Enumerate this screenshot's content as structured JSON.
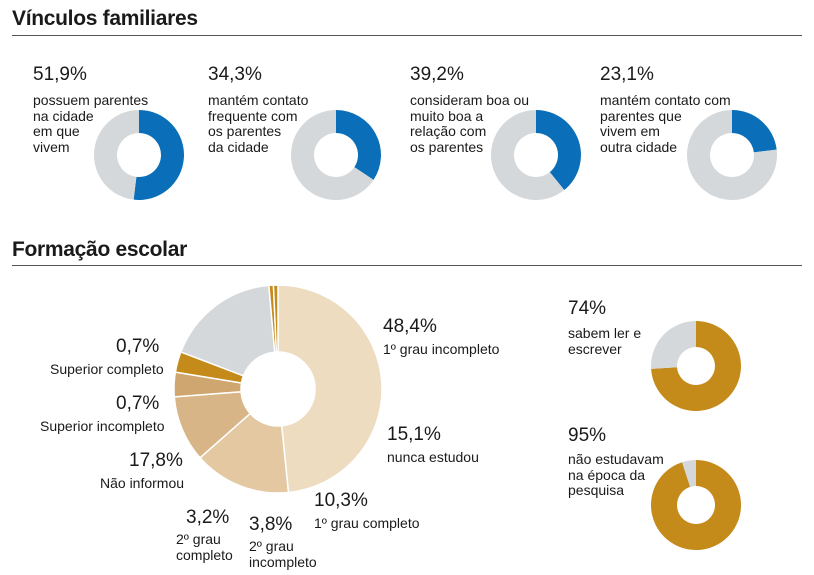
{
  "sections": {
    "family_title": "Vínculos familiares",
    "school_title": "Formação escolar"
  },
  "colors": {
    "blue": "#0a6fb8",
    "gray": "#d4d8da",
    "gold": "#c48a1a",
    "tan1": "#eddcbf",
    "tan2": "#e3c8a2",
    "tan3": "#d7b586",
    "tan4": "#cfa670"
  },
  "chart_data": [
    {
      "type": "pie",
      "variant": "donut",
      "values": [
        51.9,
        48.1
      ],
      "pct_label": "51,9%",
      "description": "possuem parentes\nna cidade\nem que\nvivem"
    },
    {
      "type": "pie",
      "variant": "donut",
      "values": [
        34.3,
        65.7
      ],
      "pct_label": "34,3%",
      "description": "mantém contato\nfrequente com\nos parentes\nda cidade"
    },
    {
      "type": "pie",
      "variant": "donut",
      "values": [
        39.2,
        60.8
      ],
      "pct_label": "39,2%",
      "description": "consideram boa ou\nmuito boa a\nrelação com\nos parentes"
    },
    {
      "type": "pie",
      "variant": "donut",
      "values": [
        23.1,
        76.9
      ],
      "pct_label": "23,1%",
      "description": "mantém contato com\nparentes que\nvivem em\noutra cidade"
    },
    {
      "type": "pie",
      "variant": "donut",
      "slices": [
        {
          "pct": 48.4,
          "pct_label": "48,4%",
          "label": "1º grau incompleto"
        },
        {
          "pct": 15.1,
          "pct_label": "15,1%",
          "label": "nunca estudou"
        },
        {
          "pct": 10.3,
          "pct_label": "10,3%",
          "label": "1º grau completo"
        },
        {
          "pct": 3.8,
          "pct_label": "3,8%",
          "label": "2º grau\nincompleto"
        },
        {
          "pct": 3.2,
          "pct_label": "3,2%",
          "label": "2º grau\ncompleto"
        },
        {
          "pct": 17.8,
          "pct_label": "17,8%",
          "label": "Não informou"
        },
        {
          "pct": 0.7,
          "pct_label": "0,7%",
          "label": "Superior incompleto"
        },
        {
          "pct": 0.7,
          "pct_label": "0,7%",
          "label": "Superior completo"
        }
      ]
    },
    {
      "type": "pie",
      "variant": "donut",
      "values": [
        74,
        26
      ],
      "pct_label": "74%",
      "description": "sabem ler e\nescrever"
    },
    {
      "type": "pie",
      "variant": "donut",
      "values": [
        95,
        5
      ],
      "pct_label": "95%",
      "description": "não estudavam\nna época da\npesquisa"
    }
  ]
}
